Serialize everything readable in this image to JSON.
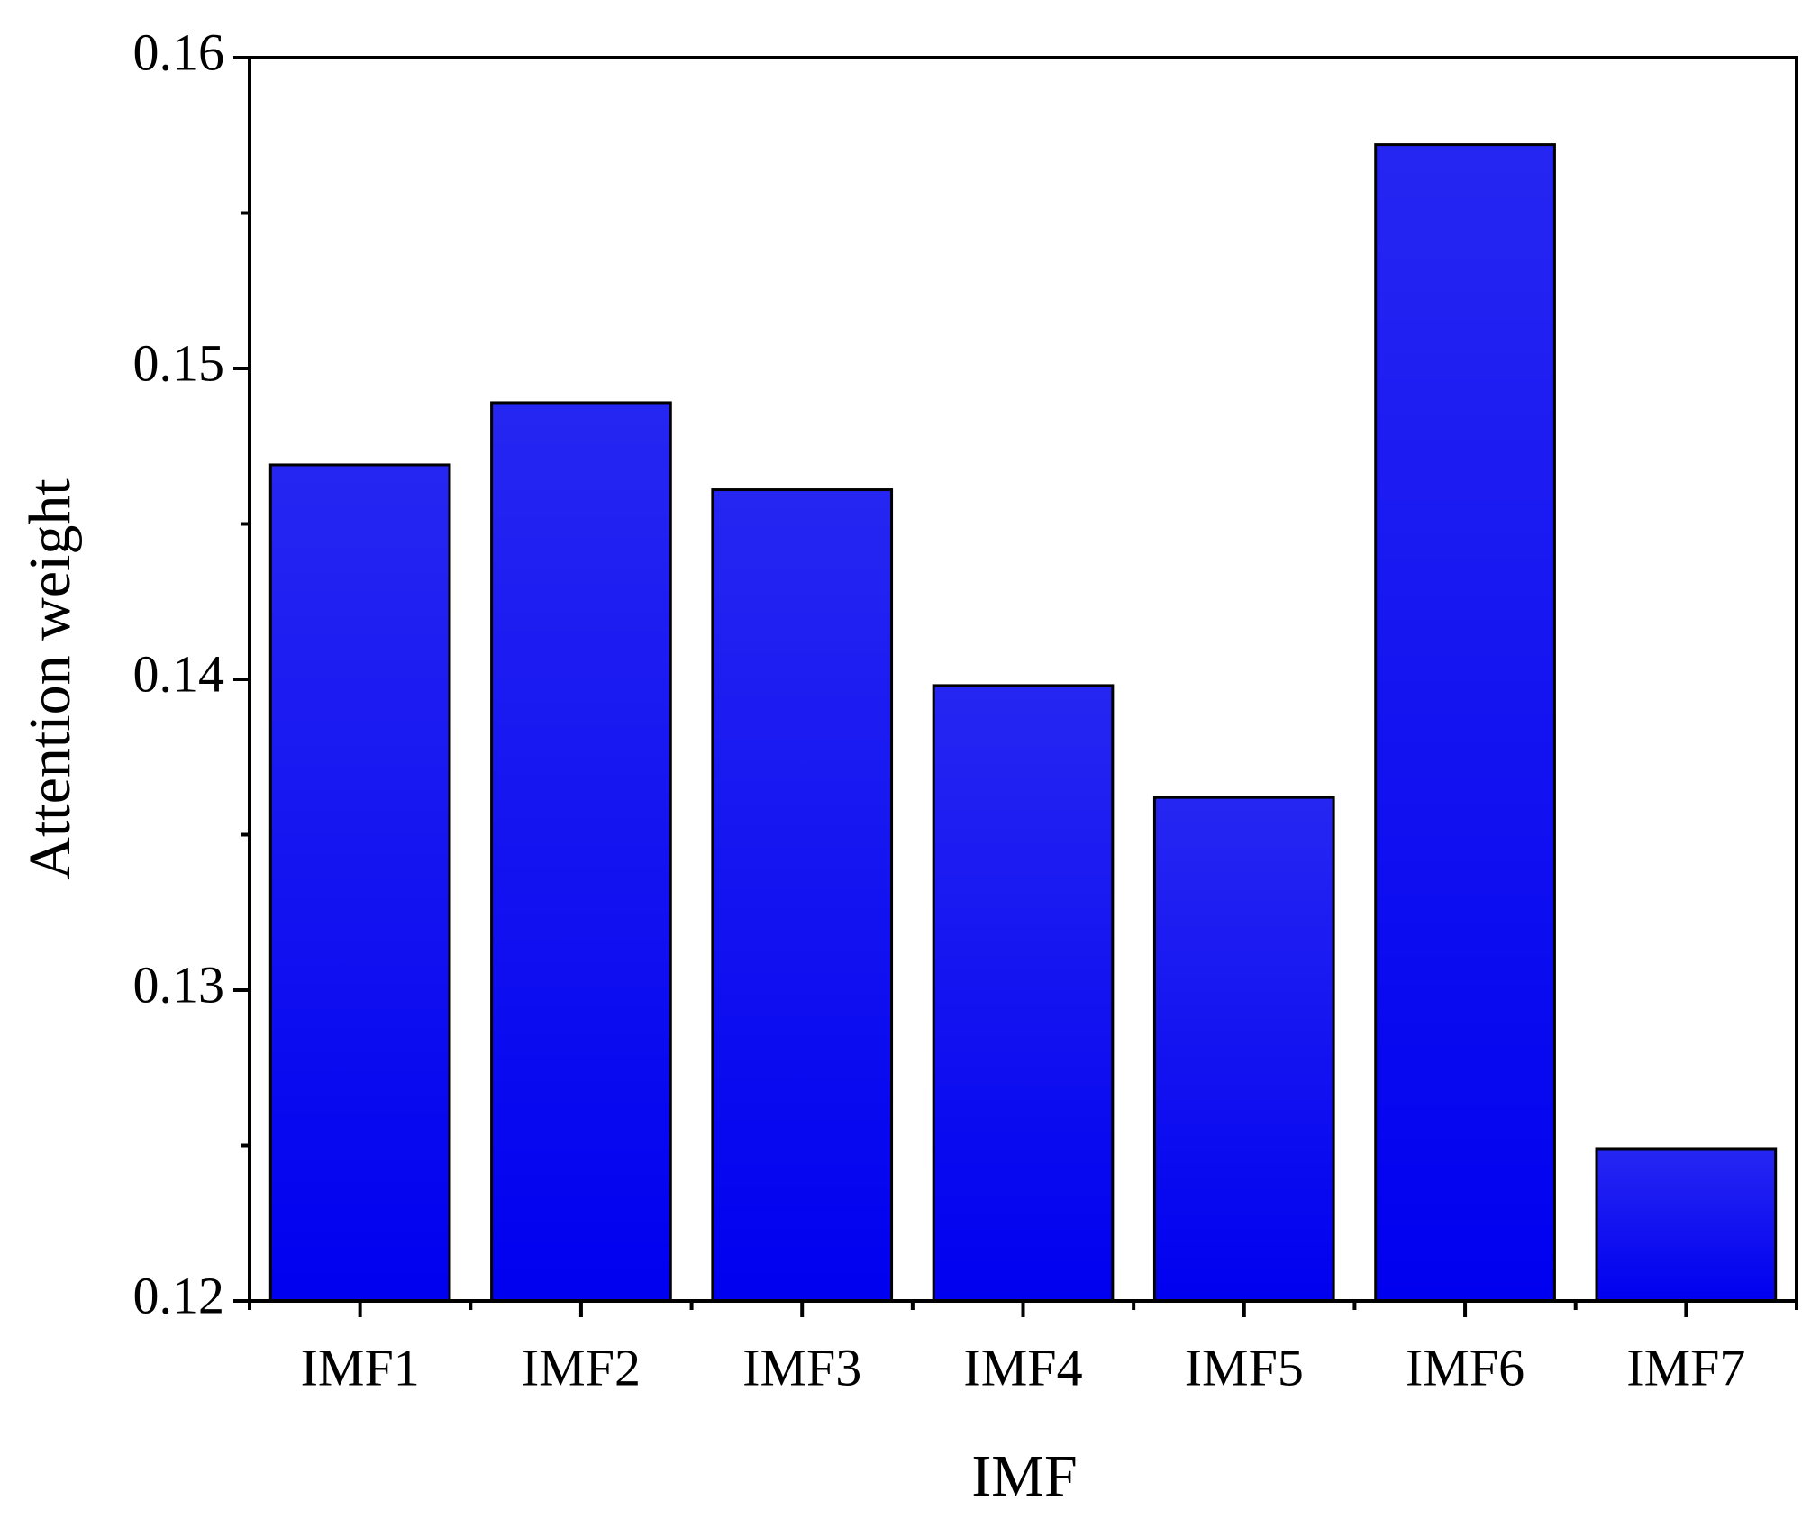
{
  "chart_data": {
    "type": "bar",
    "x_label": "IMF",
    "y_label": "Attention weight",
    "categories": [
      "IMF1",
      "IMF2",
      "IMF3",
      "IMF4",
      "IMF5",
      "IMF6",
      "IMF7"
    ],
    "values": [
      0.1469,
      0.1489,
      0.1461,
      0.1398,
      0.1362,
      0.1572,
      0.1249
    ],
    "color": "#0000f0",
    "ylim": [
      0.12,
      0.16
    ],
    "yticks": [
      0.12,
      0.13,
      0.14,
      0.15,
      0.16
    ],
    "grid": false
  }
}
